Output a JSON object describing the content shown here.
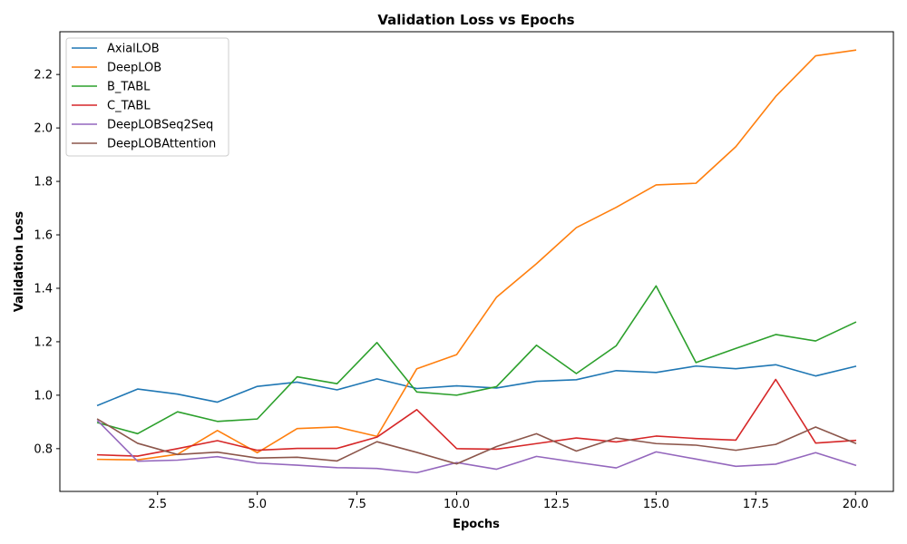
{
  "chart_data": {
    "type": "line",
    "title": "Validation Loss vs Epochs",
    "xlabel": "Epochs",
    "ylabel": "Validation Loss",
    "xlim": [
      0.05,
      20.95
    ],
    "ylim": [
      0.64,
      2.36
    ],
    "xticks": [
      2.5,
      5.0,
      7.5,
      10.0,
      12.5,
      15.0,
      17.5,
      20.0
    ],
    "xtick_labels": [
      "2.5",
      "5.0",
      "7.5",
      "10.0",
      "12.5",
      "15.0",
      "17.5",
      "20.0"
    ],
    "yticks": [
      0.8,
      1.0,
      1.2,
      1.4,
      1.6,
      1.8,
      2.0,
      2.2
    ],
    "ytick_labels": [
      "0.8",
      "1.0",
      "1.2",
      "1.4",
      "1.6",
      "1.8",
      "2.0",
      "2.2"
    ],
    "grid": false,
    "legend_position": "top-left",
    "x": [
      1,
      2,
      3,
      4,
      5,
      6,
      7,
      8,
      9,
      10,
      11,
      12,
      13,
      14,
      15,
      16,
      17,
      18,
      19,
      20
    ],
    "series": [
      {
        "name": "AxialLOB",
        "color": "#1f77b4",
        "values": [
          0.962,
          1.023,
          1.004,
          0.974,
          1.033,
          1.049,
          1.02,
          1.061,
          1.025,
          1.035,
          1.027,
          1.052,
          1.058,
          1.092,
          1.085,
          1.109,
          1.099,
          1.114,
          1.072,
          1.108
        ]
      },
      {
        "name": "DeepLOB",
        "color": "#ff7f0e",
        "values": [
          0.76,
          0.758,
          0.779,
          0.868,
          0.785,
          0.875,
          0.881,
          0.846,
          1.099,
          1.152,
          1.367,
          1.492,
          1.627,
          1.703,
          1.787,
          1.793,
          1.93,
          2.118,
          2.27,
          2.291
        ]
      },
      {
        "name": "B_TABL",
        "color": "#2ca02c",
        "values": [
          0.897,
          0.856,
          0.938,
          0.902,
          0.911,
          1.069,
          1.043,
          1.197,
          1.012,
          1.0,
          1.032,
          1.187,
          1.081,
          1.185,
          1.409,
          1.122,
          1.175,
          1.227,
          1.203,
          1.273
        ]
      },
      {
        "name": "C_TABL",
        "color": "#d62728",
        "values": [
          0.777,
          0.772,
          0.8,
          0.83,
          0.794,
          0.801,
          0.801,
          0.843,
          0.946,
          0.8,
          0.798,
          0.819,
          0.84,
          0.825,
          0.847,
          0.838,
          0.832,
          1.059,
          0.821,
          0.831
        ]
      },
      {
        "name": "DeepLOBSeq2Seq",
        "color": "#9467bd",
        "values": [
          0.904,
          0.753,
          0.757,
          0.77,
          0.746,
          0.738,
          0.729,
          0.726,
          0.71,
          0.748,
          0.723,
          0.771,
          0.749,
          0.728,
          0.788,
          0.761,
          0.734,
          0.742,
          0.785,
          0.738
        ]
      },
      {
        "name": "DeepLOBAttention",
        "color": "#8c564b",
        "values": [
          0.91,
          0.82,
          0.778,
          0.787,
          0.765,
          0.768,
          0.754,
          0.826,
          0.786,
          0.743,
          0.808,
          0.856,
          0.791,
          0.84,
          0.819,
          0.813,
          0.794,
          0.816,
          0.881,
          0.82
        ]
      }
    ]
  }
}
